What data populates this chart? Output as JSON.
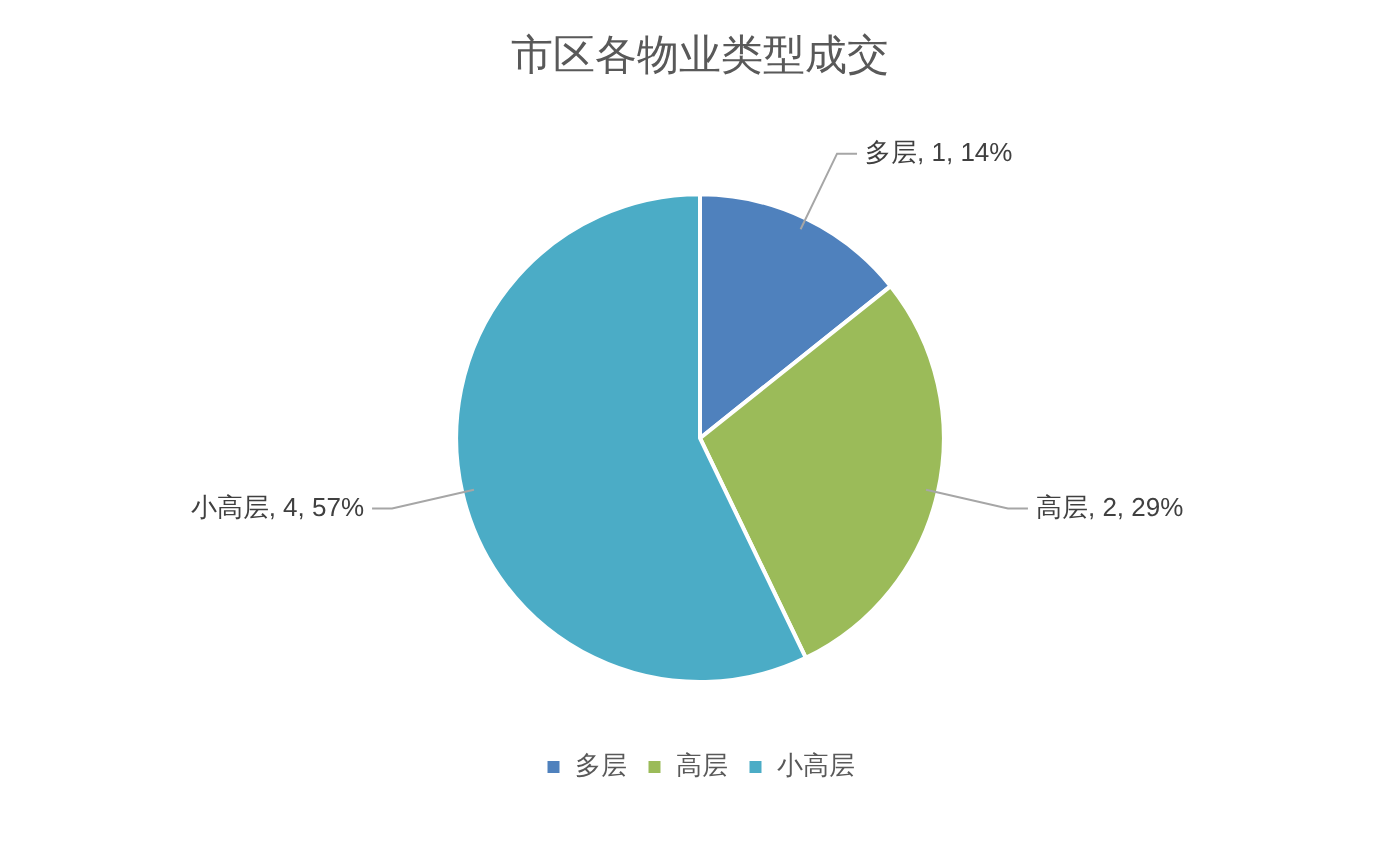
{
  "chart_data": {
    "type": "pie",
    "title": "市区各物业类型成交",
    "categories": [
      "多层",
      "高层",
      "小高层"
    ],
    "values": [
      1,
      2,
      4
    ],
    "colors": [
      "#4f81bd",
      "#9bbb59",
      "#4bacc6"
    ],
    "value_labels": [
      "多层, 1, 14%",
      "高层, 2, 29%",
      "小高层, 4, 57%"
    ],
    "legend": "bottom"
  }
}
